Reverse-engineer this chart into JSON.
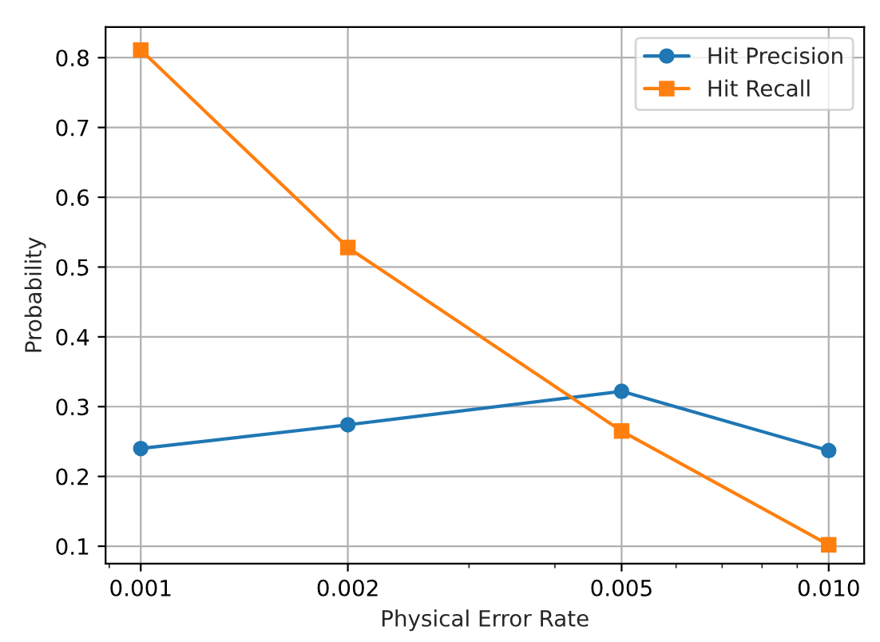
{
  "chart_data": {
    "type": "line",
    "xlabel": "Physical Error Rate",
    "ylabel": "Probability",
    "x": [
      0.001,
      0.002,
      0.005,
      0.01
    ],
    "series": [
      {
        "name": "Hit Precision",
        "color": "#1f77b4",
        "marker": "circle",
        "values": [
          0.24,
          0.274,
          0.322,
          0.237
        ]
      },
      {
        "name": "Hit Recall",
        "color": "#ff7f0e",
        "marker": "square",
        "values": [
          0.811,
          0.528,
          0.265,
          0.102
        ]
      }
    ],
    "log": "x",
    "xlim": [
      0.000889,
      0.01126
    ],
    "ylim": [
      0.075,
      0.844
    ],
    "xticks": [
      {
        "value": 0.001,
        "label": "0.001"
      },
      {
        "value": 0.002,
        "label": "0.002"
      },
      {
        "value": 0.005,
        "label": "0.005"
      },
      {
        "value": 0.01,
        "label": "0.010"
      }
    ],
    "yticks": [
      0.1,
      0.2,
      0.3,
      0.4,
      0.5,
      0.6,
      0.7,
      0.8
    ],
    "grid": true,
    "legend": "top right",
    "line_style": "solid"
  }
}
